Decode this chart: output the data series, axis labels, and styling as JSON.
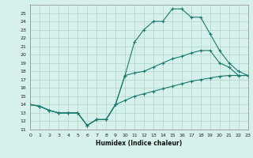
{
  "xlabel": "Humidex (Indice chaleur)",
  "ylabel": "",
  "background_color": "#d6f0eb",
  "grid_color": "#add4cc",
  "line_color": "#1a7a6e",
  "x_values": [
    0,
    1,
    2,
    3,
    4,
    5,
    6,
    7,
    8,
    9,
    10,
    11,
    12,
    13,
    14,
    15,
    16,
    17,
    18,
    19,
    20,
    21,
    22,
    23
  ],
  "line1": [
    14,
    13.8,
    13.3,
    13.0,
    13.0,
    13.0,
    11.5,
    12.2,
    12.2,
    14.0,
    17.5,
    21.5,
    23.0,
    24.0,
    24.0,
    25.5,
    25.5,
    24.5,
    24.5,
    22.5,
    20.5,
    19.0,
    18.0,
    17.5
  ],
  "line2": [
    14,
    13.8,
    13.3,
    13.0,
    13.0,
    13.0,
    11.5,
    12.2,
    12.2,
    14.0,
    17.5,
    17.8,
    18.0,
    18.5,
    19.0,
    19.5,
    19.8,
    20.2,
    20.5,
    20.5,
    19.0,
    18.5,
    17.5,
    17.5
  ],
  "line3": [
    14,
    13.8,
    13.3,
    13.0,
    13.0,
    13.0,
    11.5,
    12.2,
    12.2,
    14.0,
    14.5,
    15.0,
    15.3,
    15.6,
    15.9,
    16.2,
    16.5,
    16.8,
    17.0,
    17.2,
    17.4,
    17.5,
    17.5,
    17.5
  ],
  "ylim": [
    11,
    26
  ],
  "xlim": [
    0,
    23
  ],
  "yticks": [
    11,
    12,
    13,
    14,
    15,
    16,
    17,
    18,
    19,
    20,
    21,
    22,
    23,
    24,
    25
  ],
  "xticks": [
    0,
    1,
    2,
    3,
    4,
    5,
    6,
    7,
    8,
    9,
    10,
    11,
    12,
    13,
    14,
    15,
    16,
    17,
    18,
    19,
    20,
    21,
    22,
    23
  ]
}
